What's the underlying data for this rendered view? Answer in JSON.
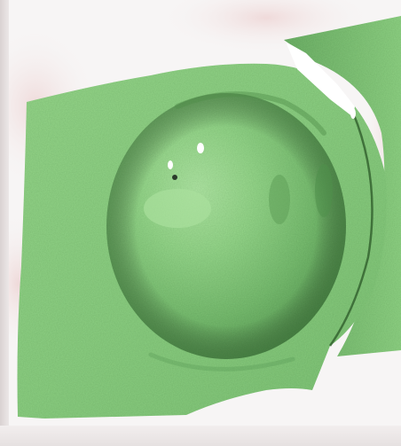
{
  "image": {
    "subject": "",
    "colors": {
      "mesh_base": "#8ccf82",
      "mesh_light": "#a8e09c",
      "mesh_shadow": "#4f8f4a",
      "background": "#f6f4f4",
      "ghost_bg": "#f0d8d8",
      "hole": "#ffffff"
    }
  }
}
